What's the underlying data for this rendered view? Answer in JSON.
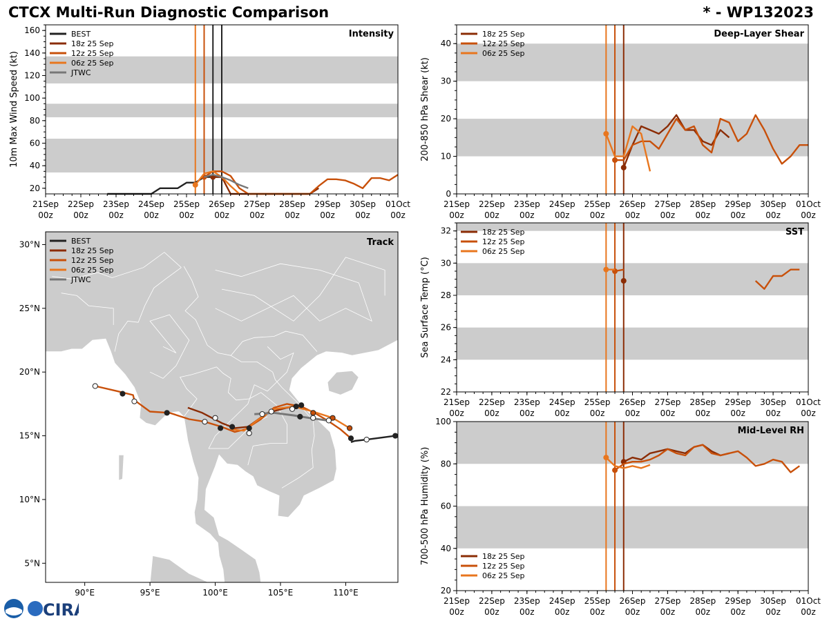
{
  "header": {
    "title": "CTCX Multi-Run Diagnostic Comparison",
    "storm": "* - WP132023"
  },
  "logo": {
    "text": "CIRA"
  },
  "colors": {
    "BEST": "#222222",
    "18z": "#8b2c04",
    "12z": "#c8500a",
    "06z": "#e8761e",
    "JTWC": "#777777",
    "band": "#cccccc",
    "land": "#cccccc",
    "border": "#ffffff"
  },
  "time_axis": {
    "ticks": [
      {
        "t": 0,
        "top": "21Sep",
        "bottom": "00z"
      },
      {
        "t": 1,
        "top": "22Sep",
        "bottom": "00z"
      },
      {
        "t": 2,
        "top": "23Sep",
        "bottom": "00z"
      },
      {
        "t": 3,
        "top": "24Sep",
        "bottom": "00z"
      },
      {
        "t": 4,
        "top": "25Sep",
        "bottom": "00z"
      },
      {
        "t": 5,
        "top": "26Sep",
        "bottom": "00z"
      },
      {
        "t": 6,
        "top": "27Sep",
        "bottom": "00z"
      },
      {
        "t": 7,
        "top": "28Sep",
        "bottom": "00z"
      },
      {
        "t": 8,
        "top": "29Sep",
        "bottom": "00z"
      },
      {
        "t": 9,
        "top": "30Sep",
        "bottom": "00z"
      },
      {
        "t": 10,
        "top": "01Oct",
        "bottom": "00z"
      }
    ],
    "range_days": [
      0,
      10
    ]
  },
  "chart_data": [
    {
      "id": "intensity",
      "type": "line",
      "title": "Intensity",
      "ylabel": "10m Max Wind Speed (kt)",
      "ylim": [
        15,
        165
      ],
      "yticks": [
        20,
        40,
        60,
        80,
        100,
        120,
        140,
        160
      ],
      "bands": [
        [
          34,
          64
        ],
        [
          83,
          95
        ],
        [
          113,
          137
        ]
      ],
      "vlines": [
        {
          "key": "06z",
          "t": 4.25
        },
        {
          "key": "12z",
          "t": 4.5
        },
        {
          "key": "BEST",
          "t": 4.75
        },
        {
          "key": "BEST",
          "t": 5.0
        }
      ],
      "legend": [
        {
          "key": "BEST",
          "label": "BEST"
        },
        {
          "key": "18z",
          "label": "18z 25 Sep"
        },
        {
          "key": "12z",
          "label": "12z 25 Sep"
        },
        {
          "key": "06z",
          "label": "06z 25 Sep"
        },
        {
          "key": "JTWC",
          "label": "JTWC"
        }
      ],
      "series": [
        {
          "key": "BEST",
          "x": [
            1.75,
            2.0,
            2.5,
            3.0,
            3.25,
            3.75,
            4.0,
            4.25,
            4.5,
            4.75,
            5.0
          ],
          "y": [
            15,
            15,
            15,
            15,
            20,
            20,
            25,
            25,
            30,
            30,
            30
          ]
        },
        {
          "key": "18z",
          "x": [
            4.75,
            5.0,
            5.25,
            7.5,
            7.75
          ],
          "y": [
            30,
            30,
            15,
            15,
            20
          ],
          "start": {
            "x": 4.75,
            "y": 30
          }
        },
        {
          "key": "12z",
          "x": [
            4.5,
            4.75,
            5.0,
            5.25,
            5.5,
            5.75,
            7.0,
            7.25,
            7.5,
            7.75,
            8.0,
            8.25,
            8.5,
            8.75,
            9.0,
            9.25,
            9.5,
            9.75,
            10.0
          ],
          "y": [
            30,
            35,
            35,
            31,
            20,
            15,
            15,
            15,
            15,
            22,
            28,
            28,
            27,
            24,
            20,
            29,
            29,
            27,
            32
          ],
          "start": {
            "x": 4.5,
            "y": 30
          }
        },
        {
          "key": "06z",
          "x": [
            4.25,
            4.5,
            4.75,
            5.0,
            5.25,
            5.5
          ],
          "y": [
            23,
            33,
            35,
            30,
            22,
            15
          ],
          "start": {
            "x": 4.25,
            "y": 23
          }
        },
        {
          "key": "JTWC",
          "x": [
            4.5,
            4.75,
            5.0,
            5.25,
            5.5,
            5.75
          ],
          "y": [
            30,
            32,
            30,
            27,
            23,
            20
          ]
        }
      ]
    },
    {
      "id": "shear",
      "type": "line",
      "title": "Deep-Layer Shear",
      "ylabel": "200-850 hPa Shear (kt)",
      "ylim": [
        0,
        45
      ],
      "yticks": [
        0,
        10,
        20,
        30,
        40
      ],
      "bands": [
        [
          10,
          20
        ],
        [
          30,
          40
        ]
      ],
      "vlines": [
        {
          "key": "06z",
          "t": 4.25
        },
        {
          "key": "12z",
          "t": 4.5
        },
        {
          "key": "18z",
          "t": 4.75
        }
      ],
      "legend": [
        {
          "key": "18z",
          "label": "18z 25 Sep"
        },
        {
          "key": "12z",
          "label": "12z 25 Sep"
        },
        {
          "key": "06z",
          "label": "06z 25 Sep"
        }
      ],
      "series": [
        {
          "key": "18z",
          "x": [
            4.75,
            5.0,
            5.25,
            5.5,
            5.75,
            6.0,
            6.25,
            6.5,
            6.75,
            7.0,
            7.25,
            7.5,
            7.75
          ],
          "y": [
            7,
            13,
            18,
            17,
            16,
            18,
            21,
            17,
            17,
            14,
            13,
            17,
            15
          ],
          "start": {
            "x": 4.75,
            "y": 7
          }
        },
        {
          "key": "12z",
          "x": [
            4.5,
            4.75,
            5.0,
            5.25,
            5.5,
            5.75,
            6.0,
            6.25,
            6.5,
            6.75,
            7.0,
            7.25,
            7.5,
            7.75,
            8.0,
            8.25,
            8.5,
            8.75,
            9.0,
            9.25,
            9.5,
            9.75,
            10.0
          ],
          "y": [
            9,
            9,
            13,
            14,
            14,
            12,
            16,
            20,
            17,
            18,
            13,
            11,
            20,
            19,
            14,
            16,
            21,
            17,
            12,
            8,
            10,
            13,
            13
          ],
          "start": {
            "x": 4.5,
            "y": 9
          }
        },
        {
          "key": "06z",
          "x": [
            4.25,
            4.5,
            4.75,
            5.0,
            5.25,
            5.5
          ],
          "y": [
            16,
            10,
            10,
            18,
            16,
            6
          ],
          "start": {
            "x": 4.25,
            "y": 16
          }
        }
      ]
    },
    {
      "id": "sst",
      "type": "line",
      "title": "SST",
      "ylabel": "Sea Surface Temp (°C)",
      "ylim": [
        22,
        32.5
      ],
      "yticks": [
        22,
        24,
        26,
        28,
        30,
        32
      ],
      "bands": [
        [
          24,
          26
        ],
        [
          28,
          30
        ],
        [
          32,
          32.5
        ]
      ],
      "vlines": [
        {
          "key": "06z",
          "t": 4.25
        },
        {
          "key": "12z",
          "t": 4.5
        },
        {
          "key": "18z",
          "t": 4.75
        }
      ],
      "legend": [
        {
          "key": "18z",
          "label": "18z 25 Sep"
        },
        {
          "key": "12z",
          "label": "12z 25 Sep"
        },
        {
          "key": "06z",
          "label": "06z 25 Sep"
        }
      ],
      "series": [
        {
          "key": "18z",
          "x": [
            4.75
          ],
          "y": [
            28.9
          ],
          "start": {
            "x": 4.75,
            "y": 28.9
          }
        },
        {
          "key": "12z",
          "x": [
            4.5,
            4.75,
            8.5,
            8.75,
            9.0,
            9.25,
            9.5,
            9.75
          ],
          "y": [
            29.5,
            29.6,
            28.9,
            28.4,
            29.2,
            29.2,
            29.6,
            29.6
          ],
          "start": {
            "x": 4.5,
            "y": 29.5
          },
          "gap_after": 1
        },
        {
          "key": "06z",
          "x": [
            4.25,
            4.5
          ],
          "y": [
            29.6,
            29.6
          ],
          "start": {
            "x": 4.25,
            "y": 29.6
          }
        }
      ]
    },
    {
      "id": "rh",
      "type": "line",
      "title": "Mid-Level RH",
      "ylabel": "700-500 hPa Humidity (%)",
      "ylim": [
        20,
        100
      ],
      "yticks": [
        20,
        40,
        60,
        80,
        100
      ],
      "bands": [
        [
          40,
          60
        ],
        [
          80,
          100
        ]
      ],
      "vlines": [
        {
          "key": "06z",
          "t": 4.25
        },
        {
          "key": "12z",
          "t": 4.5
        },
        {
          "key": "18z",
          "t": 4.75
        }
      ],
      "legend": [
        {
          "key": "18z",
          "label": "18z 25 Sep"
        },
        {
          "key": "12z",
          "label": "12z 25 Sep"
        },
        {
          "key": "06z",
          "label": "06z 25 Sep"
        }
      ],
      "series": [
        {
          "key": "18z",
          "x": [
            4.75,
            5.0,
            5.25,
            5.5,
            5.75,
            6.0,
            6.25,
            6.5,
            6.75,
            7.0,
            7.25,
            7.5,
            7.75
          ],
          "y": [
            81,
            83,
            82,
            85,
            86,
            87,
            86,
            85,
            88,
            89,
            86,
            84,
            85
          ],
          "start": {
            "x": 4.75,
            "y": 81
          }
        },
        {
          "key": "12z",
          "x": [
            4.5,
            4.75,
            5.0,
            5.25,
            5.5,
            5.75,
            6.0,
            6.25,
            6.5,
            6.75,
            7.0,
            7.25,
            7.5,
            7.75,
            8.0,
            8.25,
            8.5,
            8.75,
            9.0,
            9.25,
            9.5,
            9.75
          ],
          "y": [
            77,
            80,
            81,
            81,
            82,
            84,
            87,
            85,
            84,
            88,
            89,
            85,
            84,
            85,
            86,
            83,
            79,
            80,
            82,
            81,
            76,
            79
          ],
          "start": {
            "x": 4.5,
            "y": 77
          }
        },
        {
          "key": "06z",
          "x": [
            4.25,
            4.5,
            4.75,
            5.0,
            5.25,
            5.5
          ],
          "y": [
            83,
            79,
            78,
            79,
            78,
            79.5
          ],
          "start": {
            "x": 4.25,
            "y": 83
          }
        }
      ]
    },
    {
      "id": "track",
      "type": "scatter",
      "title": "Track",
      "xlim": [
        87,
        114
      ],
      "ylim": [
        3.5,
        31
      ],
      "xticks": [
        {
          "v": 90,
          "label": "90°E"
        },
        {
          "v": 95,
          "label": "95°E"
        },
        {
          "v": 100,
          "label": "100°E"
        },
        {
          "v": 105,
          "label": "105°E"
        },
        {
          "v": 110,
          "label": "110°E"
        }
      ],
      "yticks": [
        {
          "v": 5,
          "label": "5°N"
        },
        {
          "v": 10,
          "label": "10°N"
        },
        {
          "v": 15,
          "label": "15°N"
        },
        {
          "v": 20,
          "label": "20°N"
        },
        {
          "v": 25,
          "label": "25°N"
        },
        {
          "v": 30,
          "label": "30°N"
        }
      ],
      "legend": [
        {
          "key": "BEST",
          "label": "BEST"
        },
        {
          "key": "18z",
          "label": "18z 25 Sep"
        },
        {
          "key": "12z",
          "label": "12z 25 Sep"
        },
        {
          "key": "06z",
          "label": "06z 25 Sep"
        },
        {
          "key": "JTWC",
          "label": "JTWC"
        }
      ],
      "series": [
        {
          "key": "BEST",
          "lon": [
            114.0,
            113.8,
            111.6,
            110.7,
            110.4
          ],
          "lat": [
            15.0,
            15.0,
            14.7,
            14.6,
            14.5
          ],
          "markers": [
            {
              "lon": 113.8,
              "lat": 15.0,
              "fill": "dark"
            },
            {
              "lon": 111.6,
              "lat": 14.7,
              "fill": "open"
            },
            {
              "lon": 110.4,
              "lat": 14.8,
              "fill": "dark"
            }
          ]
        },
        {
          "key": "18z",
          "lon": [
            97.9,
            99.0,
            100.5,
            101.5,
            102.5,
            104.0,
            105.5,
            106.6
          ],
          "lat": [
            17.2,
            16.8,
            16.0,
            15.6,
            15.7,
            16.8,
            17.2,
            17.4
          ],
          "markers": [
            {
              "lon": 106.6,
              "lat": 17.4,
              "fill": "dark"
            },
            {
              "lon": 102.6,
              "lat": 15.6,
              "fill": "dark"
            }
          ]
        },
        {
          "key": "12z",
          "lon": [
            110.4,
            109.6,
            108.6,
            107.6,
            106.6,
            105.5,
            104.5,
            103.5,
            102.3,
            101.5,
            100.5,
            99.2,
            98.0,
            96.5,
            95.0,
            93.8,
            93.7,
            92.5,
            90.8
          ],
          "lat": [
            14.8,
            15.5,
            16.2,
            16.8,
            17.3,
            17.5,
            17.2,
            16.3,
            15.5,
            15.3,
            15.7,
            16.1,
            16.3,
            16.8,
            16.9,
            17.8,
            18.2,
            18.5,
            18.9
          ],
          "markers": [
            {
              "lon": 106.2,
              "lat": 17.3,
              "fill": "dark"
            },
            {
              "lon": 101.3,
              "lat": 15.7,
              "fill": "dark"
            },
            {
              "lon": 96.3,
              "lat": 16.8,
              "fill": "dark"
            },
            {
              "lon": 92.9,
              "lat": 18.3,
              "fill": "dark"
            },
            {
              "lon": 93.8,
              "lat": 17.7,
              "fill": "open"
            },
            {
              "lon": 90.8,
              "lat": 18.9,
              "fill": "open"
            },
            {
              "lon": 105.9,
              "lat": 17.1,
              "fill": "open"
            },
            {
              "lon": 99.2,
              "lat": 16.1,
              "fill": "open"
            }
          ]
        },
        {
          "key": "06z",
          "lon": [
            110.3,
            109.0,
            107.5,
            106.0,
            104.5,
            103.2,
            102.2,
            101.2
          ],
          "lat": [
            15.6,
            16.4,
            16.9,
            17.3,
            17.1,
            16.2,
            15.4,
            15.5
          ],
          "markers": [
            {
              "lon": 110.3,
              "lat": 15.6,
              "fill": "orange"
            },
            {
              "lon": 109.0,
              "lat": 16.4,
              "fill": "orange"
            },
            {
              "lon": 107.5,
              "lat": 16.8,
              "fill": "orange"
            },
            {
              "lon": 100.4,
              "lat": 15.6,
              "fill": "dark"
            },
            {
              "lon": 100.0,
              "lat": 16.4,
              "fill": "open"
            }
          ]
        },
        {
          "key": "JTWC",
          "lon": [
            103.0,
            104.5,
            106.0,
            107.2,
            108.6
          ],
          "lat": [
            16.7,
            16.8,
            16.6,
            16.4,
            16.2
          ],
          "markers": [
            {
              "lon": 104.3,
              "lat": 16.9,
              "fill": "open"
            },
            {
              "lon": 106.5,
              "lat": 16.5,
              "fill": "dark"
            },
            {
              "lon": 107.5,
              "lat": 16.4,
              "fill": "open"
            },
            {
              "lon": 108.7,
              "lat": 16.2,
              "fill": "open"
            },
            {
              "lon": 102.6,
              "lat": 15.2,
              "fill": "open"
            },
            {
              "lon": 103.6,
              "lat": 16.7,
              "fill": "open"
            }
          ]
        }
      ]
    }
  ]
}
